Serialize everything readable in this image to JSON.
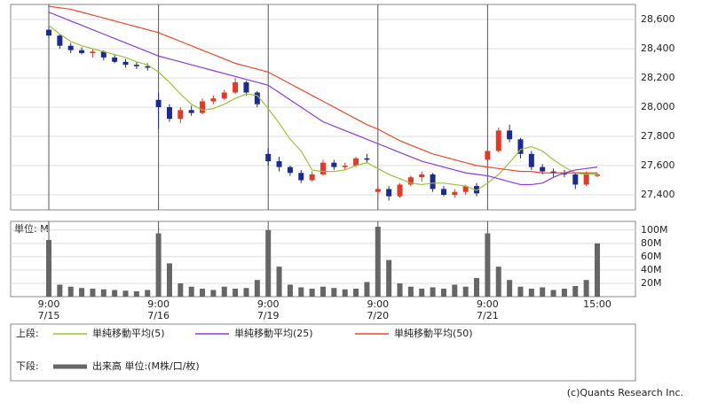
{
  "chart_data": [
    {
      "type": "candlestick",
      "categories": [
        "9:00\n7/15",
        null,
        null,
        null,
        null,
        null,
        null,
        null,
        null,
        null,
        "9:00\n7/16",
        null,
        null,
        null,
        null,
        null,
        null,
        null,
        null,
        null,
        "9:00\n7/19",
        null,
        null,
        null,
        null,
        null,
        null,
        null,
        null,
        null,
        "9:00\n7/20",
        null,
        null,
        null,
        null,
        null,
        null,
        null,
        null,
        null,
        "9:00\n7/21",
        null,
        null,
        null,
        null,
        null,
        null,
        null,
        null,
        null,
        "15:00"
      ],
      "open": [
        28530,
        28490,
        28420,
        28390,
        28370,
        28380,
        28340,
        28310,
        28290,
        28280,
        28050,
        28000,
        27920,
        27980,
        27960,
        28040,
        28060,
        28100,
        28170,
        28100,
        27680,
        27630,
        27590,
        27550,
        27500,
        27540,
        27620,
        27590,
        27600,
        27650,
        27420,
        27440,
        27390,
        27470,
        27520,
        27540,
        27440,
        27400,
        27420,
        27460,
        27640,
        27700,
        27840,
        27780,
        27680,
        27590,
        27560,
        27550,
        27540,
        27470,
        27530
      ],
      "high": [
        28560,
        28500,
        28440,
        28410,
        28400,
        28390,
        28360,
        28330,
        28310,
        28300,
        28100,
        28020,
        28000,
        28010,
        28060,
        28080,
        28120,
        28200,
        28180,
        28110,
        27720,
        27660,
        27600,
        27570,
        27560,
        27640,
        27640,
        27620,
        27660,
        27680,
        27460,
        27460,
        27480,
        27530,
        27560,
        27550,
        27460,
        27440,
        27470,
        27480,
        27720,
        27860,
        27880,
        27790,
        27700,
        27610,
        27580,
        27570,
        27550,
        27560,
        27550
      ],
      "low": [
        28470,
        28400,
        28370,
        28360,
        28340,
        28320,
        28300,
        28270,
        28260,
        28250,
        27850,
        27900,
        27890,
        27940,
        27950,
        28020,
        28050,
        28090,
        28080,
        28000,
        27600,
        27560,
        27530,
        27480,
        27490,
        27530,
        27570,
        27570,
        27590,
        27620,
        27370,
        27360,
        27380,
        27460,
        27490,
        27420,
        27390,
        27380,
        27400,
        27390,
        27620,
        27690,
        27760,
        27650,
        27570,
        27540,
        27520,
        27520,
        27440,
        27460,
        27520
      ],
      "close": [
        28490,
        28420,
        28390,
        28370,
        28380,
        28340,
        28310,
        28290,
        28280,
        28270,
        28000,
        27920,
        27980,
        27960,
        28040,
        28060,
        28100,
        28170,
        28100,
        28020,
        27630,
        27590,
        27550,
        27500,
        27540,
        27620,
        27590,
        27600,
        27650,
        27640,
        27440,
        27390,
        27470,
        27520,
        27540,
        27440,
        27400,
        27420,
        27460,
        27410,
        27700,
        27840,
        27780,
        27680,
        27590,
        27560,
        27550,
        27540,
        27470,
        27550,
        27540
      ],
      "up_color": "#e03a2a",
      "down_color": "#1c2c8c",
      "legend_title": "上段:",
      "series": [
        {
          "name": "単純移動平均(5)",
          "color": "#9ac43a",
          "values": [
            28560,
            28500,
            28450,
            28420,
            28400,
            28380,
            28360,
            28340,
            28310,
            28290,
            28240,
            28170,
            28090,
            28020,
            27980,
            27990,
            28020,
            28060,
            28090,
            28080,
            27990,
            27890,
            27780,
            27700,
            27570,
            27560,
            27560,
            27570,
            27600,
            27620,
            27580,
            27540,
            27510,
            27480,
            27470,
            27480,
            27480,
            27470,
            27460,
            27430,
            27480,
            27540,
            27620,
            27710,
            27730,
            27700,
            27640,
            27590,
            27550,
            27540,
            27540
          ]
        },
        {
          "name": "単純移動平均(25)",
          "color": "#8a3ad8",
          "values": [
            28650,
            28620,
            28590,
            28560,
            28530,
            28500,
            28470,
            28440,
            28410,
            28380,
            28350,
            28330,
            28310,
            28290,
            28270,
            28250,
            28230,
            28210,
            28190,
            28170,
            28150,
            28100,
            28050,
            28000,
            27950,
            27900,
            27870,
            27840,
            27810,
            27780,
            27750,
            27720,
            27690,
            27660,
            27630,
            27610,
            27590,
            27570,
            27550,
            27540,
            27530,
            27510,
            27490,
            27470,
            27470,
            27480,
            27520,
            27550,
            27570,
            27580,
            27590
          ]
        },
        {
          "name": "単純移動平均(50)",
          "color": "#f0452a",
          "values": [
            28690,
            28680,
            28670,
            28650,
            28630,
            28610,
            28590,
            28570,
            28550,
            28530,
            28510,
            28480,
            28450,
            28420,
            28390,
            28360,
            28330,
            28300,
            28280,
            28260,
            28240,
            28200,
            28160,
            28120,
            28080,
            28040,
            28000,
            27960,
            27920,
            27880,
            27850,
            27810,
            27770,
            27740,
            27710,
            27680,
            27660,
            27640,
            27620,
            27600,
            27590,
            27580,
            27570,
            27560,
            27560,
            27550,
            27550,
            27550,
            27550,
            27550,
            27550
          ]
        }
      ],
      "ylim": [
        27297,
        28703
      ],
      "yticks": [
        {
          "value": 27400,
          "label": "27,400"
        },
        {
          "value": 27600,
          "label": "27,600"
        },
        {
          "value": 27800,
          "label": "27,800"
        },
        {
          "value": 28000,
          "label": "28,000"
        },
        {
          "value": 28200,
          "label": "28,200"
        },
        {
          "value": 28400,
          "label": "28,400"
        },
        {
          "value": 28600,
          "label": "28,600"
        }
      ],
      "grid": true
    },
    {
      "type": "bar",
      "unit_label": "単位: M",
      "legend_title": "下段:",
      "series": [
        {
          "name": "出来高 単位:(M株/口/枚)",
          "color": "#666666",
          "values": [
            85,
            18,
            15,
            13,
            12,
            11,
            10,
            9,
            8,
            10,
            95,
            50,
            20,
            15,
            12,
            10,
            15,
            12,
            13,
            25,
            100,
            45,
            18,
            14,
            12,
            15,
            13,
            11,
            12,
            22,
            105,
            55,
            20,
            15,
            12,
            14,
            12,
            18,
            15,
            28,
            95,
            45,
            25,
            15,
            12,
            14,
            10,
            12,
            16,
            25,
            80
          ]
        }
      ],
      "ylim": [
        0,
        113
      ],
      "yticks": [
        {
          "value": 20,
          "label": "20M"
        },
        {
          "value": 40,
          "label": "40M"
        },
        {
          "value": 60,
          "label": "60M"
        },
        {
          "value": 80,
          "label": "80M"
        },
        {
          "value": 100,
          "label": "100M"
        }
      ],
      "grid": true
    }
  ],
  "footer": "(c)Quants Research Inc."
}
